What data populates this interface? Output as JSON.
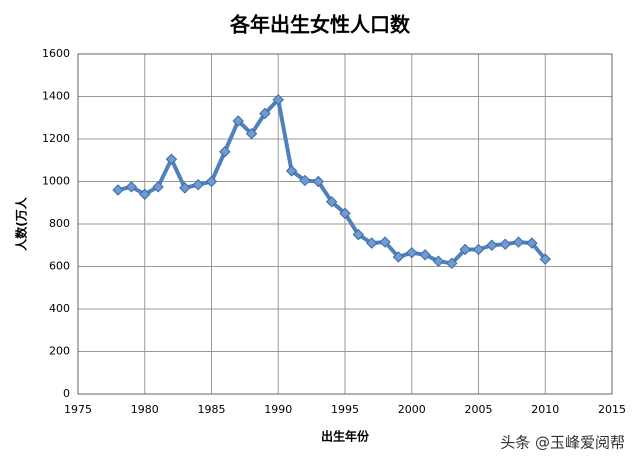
{
  "chart_data": {
    "type": "line",
    "title": "各年出生女性人口数",
    "x_label": "出生年份",
    "y_label": "人数(万人",
    "x": [
      1978,
      1979,
      1980,
      1981,
      1982,
      1983,
      1984,
      1985,
      1986,
      1987,
      1988,
      1989,
      1990,
      1991,
      1992,
      1993,
      1994,
      1995,
      1996,
      1997,
      1998,
      1999,
      2000,
      2001,
      2002,
      2003,
      2004,
      2005,
      2006,
      2007,
      2008,
      2009,
      2010
    ],
    "series": [
      {
        "name": "出生女性人口",
        "color": "#4f81bd",
        "values": [
          960,
          975,
          940,
          975,
          1105,
          970,
          985,
          1000,
          1140,
          1285,
          1225,
          1320,
          1385,
          1050,
          1005,
          1000,
          905,
          850,
          750,
          710,
          715,
          645,
          665,
          655,
          625,
          615,
          680,
          680,
          700,
          705,
          715,
          710,
          635
        ]
      }
    ],
    "xlim": [
      1975,
      2015
    ],
    "xticks": [
      1975,
      1980,
      1985,
      1990,
      1995,
      2000,
      2005,
      2010,
      2015
    ],
    "ylim": [
      0,
      1600
    ],
    "yticks": [
      0,
      200,
      400,
      600,
      800,
      1000,
      1200,
      1400,
      1600
    ],
    "grid": true,
    "watermark": "头条 @玉峰爱阅帮"
  }
}
